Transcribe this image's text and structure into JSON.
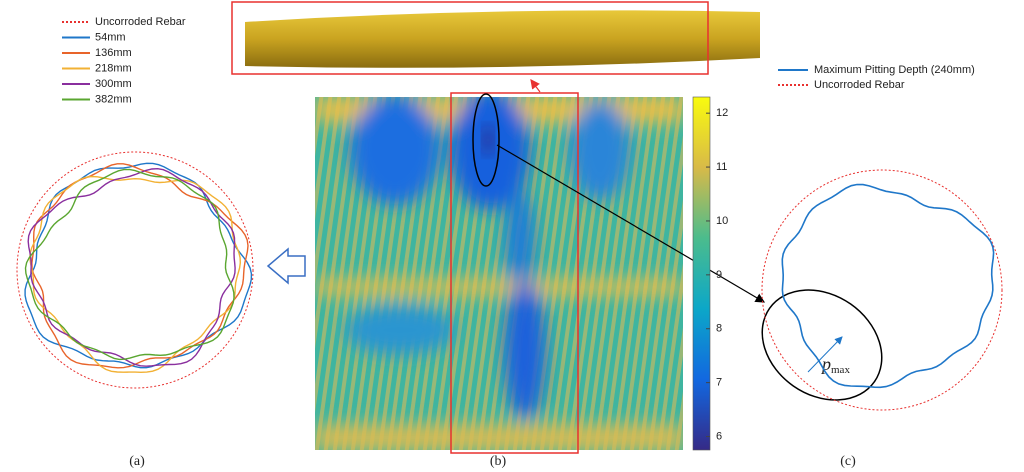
{
  "legend_a": {
    "items": [
      {
        "label": "Uncorroded Rebar",
        "color": "#e8312f"
      },
      {
        "label": "54mm",
        "color": "#1f77c9"
      },
      {
        "label": "136mm",
        "color": "#e8642a"
      },
      {
        "label": "218mm",
        "color": "#f2b134"
      },
      {
        "label": "300mm",
        "color": "#8a2f9e"
      },
      {
        "label": "382mm",
        "color": "#5aa630"
      }
    ]
  },
  "colorbar": {
    "lim": [
      5.75,
      12.3
    ],
    "ticks": [
      6,
      7,
      8,
      9,
      10,
      11,
      12
    ]
  },
  "legend_c": {
    "items": [
      {
        "label": "Maximum Pitting Depth (240mm)",
        "color": "#1f77c9"
      },
      {
        "label": "Uncorroded Rebar",
        "color": "#e8312f"
      }
    ]
  },
  "pmax": {
    "symbol": "p",
    "subscript": "max"
  },
  "panels": [
    "(a)",
    "(b)",
    "(c)"
  ]
}
